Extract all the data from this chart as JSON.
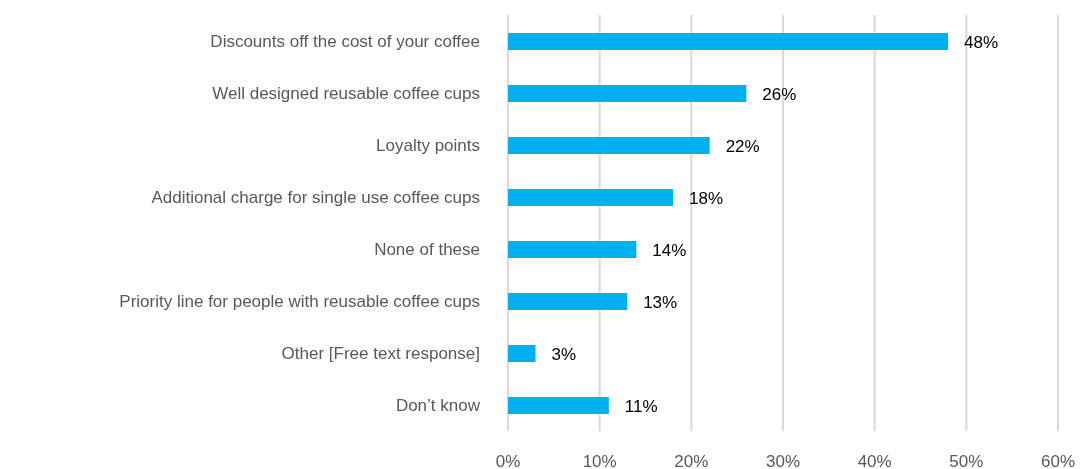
{
  "chart_data": {
    "type": "bar",
    "orientation": "horizontal",
    "categories": [
      "Discounts off the cost of your coffee",
      "Well designed reusable coffee cups",
      "Loyalty points",
      "Additional charge for single use coffee cups",
      "None of these",
      "Priority line for people with reusable coffee cups",
      "Other [Free text response]",
      "Don’t know"
    ],
    "values": [
      48,
      26,
      22,
      18,
      14,
      13,
      3,
      11
    ],
    "value_labels": [
      "48%",
      "26%",
      "22%",
      "18%",
      "14%",
      "13%",
      "3%",
      "11%"
    ],
    "color": "#00b0f0",
    "xlim": [
      0,
      60
    ],
    "xticks": [
      {
        "value": 0,
        "label": "0%"
      },
      {
        "value": 10,
        "label": "10%"
      },
      {
        "value": 20,
        "label": "20%"
      },
      {
        "value": 30,
        "label": "30%"
      },
      {
        "value": 40,
        "label": "40%"
      },
      {
        "value": 50,
        "label": "50%"
      },
      {
        "value": 60,
        "label": "60%"
      }
    ],
    "grid": "x",
    "legend": false
  }
}
